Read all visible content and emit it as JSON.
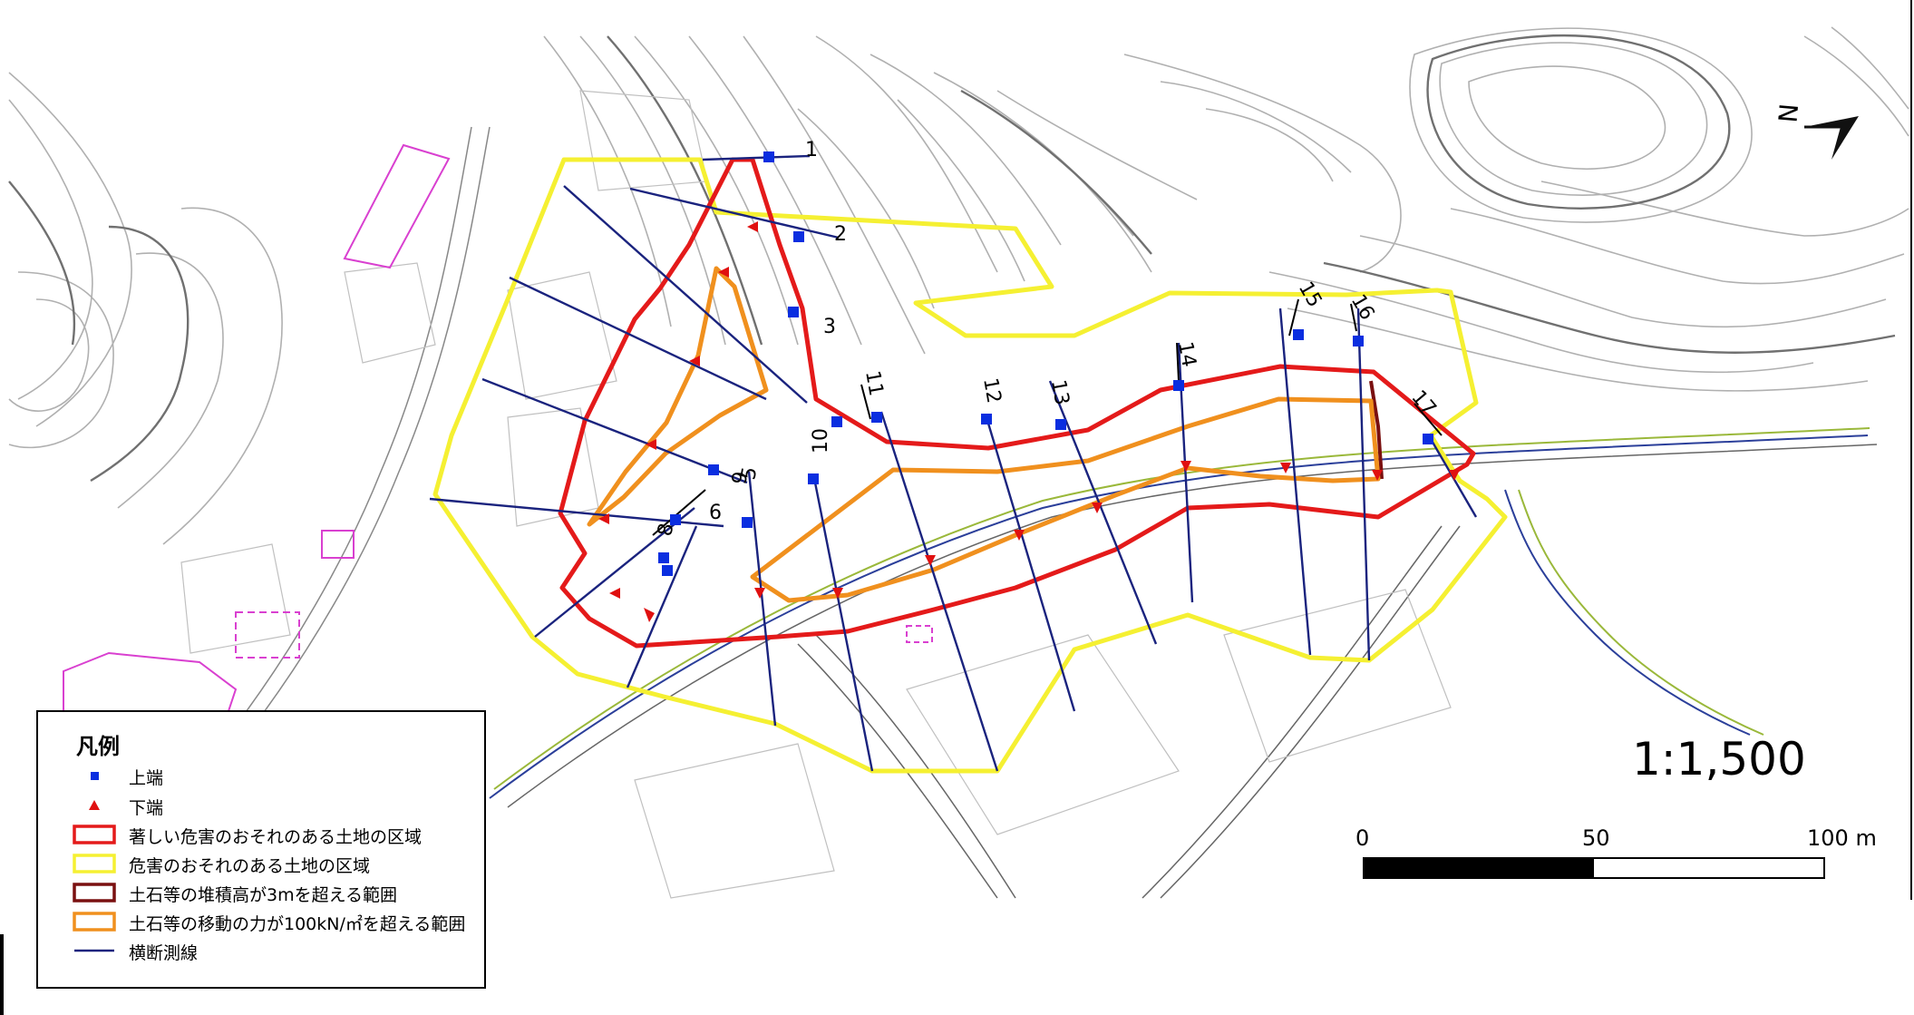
{
  "map": {
    "section_line_labels": [
      "1",
      "2",
      "3",
      "5",
      "6",
      "8",
      "9",
      "10",
      "11",
      "12",
      "13",
      "14",
      "15",
      "16",
      "17"
    ],
    "colors": {
      "contour": "#a8a8a8",
      "contour_index": "#6e6e6e",
      "building": "#d940d0",
      "road_blue": "#2b3f9a",
      "road_green": "#9ab83a",
      "section_line": "#1a237e",
      "upper_marker": "#0a2ee0",
      "lower_marker": "#e01010",
      "red_zone": "#e41a1a",
      "yellow_zone": "#f5f032",
      "brown_zone": "#7a1010",
      "orange_zone": "#f0901e"
    },
    "north_arrow": {
      "label": "N"
    }
  },
  "legend": {
    "title": "凡例",
    "items": [
      {
        "label": "上端",
        "symbol": "blue-square"
      },
      {
        "label": "下端",
        "symbol": "red-triangle"
      },
      {
        "label": "著しい危害のおそれのある土地の区域",
        "symbol": "red-box"
      },
      {
        "label": "危害のおそれのある土地の区域",
        "symbol": "yellow-box"
      },
      {
        "label": "土石等の堆積高が3mを超える範囲",
        "symbol": "brown-box"
      },
      {
        "label": "土石等の移動の力が100kN/㎡を超える範囲",
        "symbol": "orange-box"
      },
      {
        "label": "横断測線",
        "symbol": "navy-line"
      }
    ]
  },
  "scale": {
    "ratio": "1:1,500",
    "ticks": [
      "0",
      "50",
      "100 m"
    ]
  }
}
